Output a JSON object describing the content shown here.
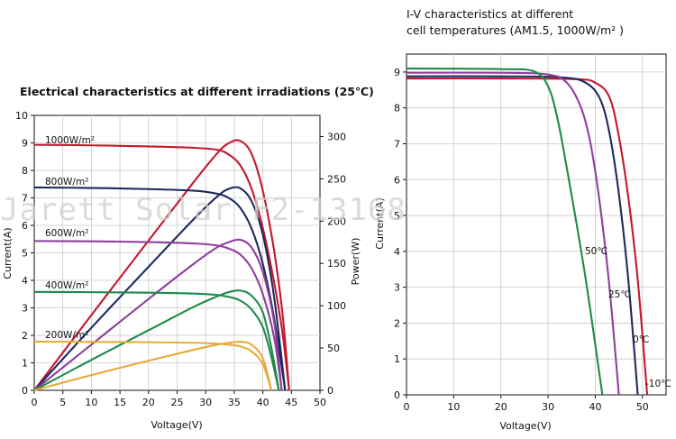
{
  "watermark": "Jarett Solar F2-13168",
  "chart_data": [
    {
      "type": "line",
      "title": "Electrical characteristics at different irradiations (25℃)",
      "xlabel": "Voltage(V)",
      "ylabel": "Current(A)",
      "y2label": "Power(W)",
      "xlim": [
        0,
        50
      ],
      "ylim": [
        0,
        10
      ],
      "y2lim": [
        0,
        325
      ],
      "xticks": [
        0,
        5,
        10,
        15,
        20,
        25,
        30,
        35,
        40,
        45,
        50
      ],
      "yticks": [
        0,
        1,
        2,
        3,
        4,
        5,
        6,
        7,
        8,
        9,
        10
      ],
      "y2ticks": [
        0,
        50,
        100,
        150,
        200,
        250,
        300
      ],
      "grid": true,
      "series": [
        {
          "name": "1000W/m²",
          "color": "#c4172e",
          "iv": [
            [
              0,
              8.93
            ],
            [
              10,
              8.91
            ],
            [
              20,
              8.87
            ],
            [
              28,
              8.82
            ],
            [
              32,
              8.75
            ],
            [
              34,
              8.58
            ],
            [
              36,
              8.2
            ],
            [
              38,
              7.35
            ],
            [
              40,
              5.9
            ],
            [
              42,
              3.9
            ],
            [
              43.5,
              2.0
            ],
            [
              44.6,
              0
            ]
          ],
          "pv": [
            [
              0,
              0
            ],
            [
              10,
              89
            ],
            [
              20,
              177
            ],
            [
              28,
              247
            ],
            [
              32,
              280
            ],
            [
              34,
              292
            ],
            [
              36,
              295
            ],
            [
              38,
              280
            ],
            [
              40,
              236
            ],
            [
              42,
              164
            ],
            [
              43.5,
              87
            ],
            [
              44.6,
              0
            ]
          ]
        },
        {
          "name": "800W/m²",
          "color": "#1e2a5e",
          "iv": [
            [
              0,
              7.38
            ],
            [
              10,
              7.36
            ],
            [
              20,
              7.32
            ],
            [
              28,
              7.26
            ],
            [
              32,
              7.15
            ],
            [
              34,
              7.0
            ],
            [
              36,
              6.65
            ],
            [
              38,
              5.9
            ],
            [
              40,
              4.6
            ],
            [
              42,
              2.6
            ],
            [
              43.9,
              0
            ]
          ],
          "pv": [
            [
              0,
              0
            ],
            [
              10,
              74
            ],
            [
              20,
              146
            ],
            [
              28,
              203
            ],
            [
              32,
              229
            ],
            [
              34,
              238
            ],
            [
              36,
              239
            ],
            [
              38,
              224
            ],
            [
              40,
              184
            ],
            [
              42,
              109
            ],
            [
              43.9,
              0
            ]
          ]
        },
        {
          "name": "600W/m²",
          "color": "#8e3e9c",
          "iv": [
            [
              0,
              5.43
            ],
            [
              10,
              5.42
            ],
            [
              20,
              5.39
            ],
            [
              28,
              5.34
            ],
            [
              32,
              5.27
            ],
            [
              34,
              5.16
            ],
            [
              36,
              4.95
            ],
            [
              38,
              4.45
            ],
            [
              40,
              3.5
            ],
            [
              42,
              1.9
            ],
            [
              43.3,
              0
            ]
          ],
          "pv": [
            [
              0,
              0
            ],
            [
              10,
              54
            ],
            [
              20,
              108
            ],
            [
              28,
              150
            ],
            [
              32,
              169
            ],
            [
              34,
              175
            ],
            [
              36,
              178
            ],
            [
              38,
              169
            ],
            [
              40,
              140
            ],
            [
              42,
              80
            ],
            [
              43.3,
              0
            ]
          ]
        },
        {
          "name": "400W/m²",
          "color": "#1e8a4a",
          "iv": [
            [
              0,
              3.58
            ],
            [
              10,
              3.57
            ],
            [
              20,
              3.55
            ],
            [
              28,
              3.52
            ],
            [
              32,
              3.47
            ],
            [
              34,
              3.4
            ],
            [
              36,
              3.27
            ],
            [
              38,
              2.95
            ],
            [
              40,
              2.3
            ],
            [
              41.5,
              1.2
            ],
            [
              42.8,
              0
            ]
          ],
          "pv": [
            [
              0,
              0
            ],
            [
              10,
              36
            ],
            [
              20,
              71
            ],
            [
              28,
              99
            ],
            [
              32,
              111
            ],
            [
              34,
              116
            ],
            [
              36,
              118
            ],
            [
              38,
              112
            ],
            [
              40,
              92
            ],
            [
              41.5,
              50
            ],
            [
              42.8,
              0
            ]
          ]
        },
        {
          "name": "200W/m²",
          "color": "#e8aa3a",
          "iv": [
            [
              0,
              1.77
            ],
            [
              10,
              1.76
            ],
            [
              20,
              1.75
            ],
            [
              28,
              1.73
            ],
            [
              32,
              1.7
            ],
            [
              34,
              1.66
            ],
            [
              36,
              1.6
            ],
            [
              38,
              1.42
            ],
            [
              40,
              0.95
            ],
            [
              41.5,
              0
            ]
          ],
          "pv": [
            [
              0,
              0
            ],
            [
              10,
              18
            ],
            [
              20,
              35
            ],
            [
              28,
              48
            ],
            [
              32,
              54
            ],
            [
              34,
              56
            ],
            [
              36,
              57.5
            ],
            [
              38,
              54
            ],
            [
              40,
              38
            ],
            [
              41.5,
              0
            ]
          ]
        }
      ],
      "annotations": [
        "1000W/m²",
        "800W/m²",
        "600W/m²",
        "400W/m²",
        "200W/m²"
      ]
    },
    {
      "type": "line",
      "title_lines": [
        "I-V characteristics at different",
        "cell temperatures (AM1.5, 1000W/m² )"
      ],
      "xlabel": "Voltage(V)",
      "ylabel": "Current(A)",
      "xlim": [
        0,
        55
      ],
      "ylim": [
        0,
        9.5
      ],
      "xticks": [
        0,
        10,
        20,
        30,
        40,
        50
      ],
      "yticks": [
        0,
        1,
        2,
        3,
        4,
        5,
        6,
        7,
        8,
        9
      ],
      "grid": true,
      "series": [
        {
          "name": "-10℃",
          "color": "#c4172e",
          "iv": [
            [
              0,
              8.82
            ],
            [
              20,
              8.82
            ],
            [
              36,
              8.8
            ],
            [
              40,
              8.7
            ],
            [
              43,
              8.3
            ],
            [
              45,
              7.2
            ],
            [
              47,
              5.5
            ],
            [
              49,
              3.2
            ],
            [
              51,
              0
            ]
          ]
        },
        {
          "name": "0℃",
          "color": "#1e2a5e",
          "iv": [
            [
              0,
              8.88
            ],
            [
              20,
              8.88
            ],
            [
              33,
              8.85
            ],
            [
              38,
              8.7
            ],
            [
              41,
              8.25
            ],
            [
              43,
              7.3
            ],
            [
              45,
              5.6
            ],
            [
              47,
              3.2
            ],
            [
              49,
              0
            ]
          ]
        },
        {
          "name": "25℃",
          "color": "#8e3e9c",
          "iv": [
            [
              0,
              8.98
            ],
            [
              20,
              8.98
            ],
            [
              30,
              8.93
            ],
            [
              34,
              8.7
            ],
            [
              37,
              8.0
            ],
            [
              39,
              7.0
            ],
            [
              41,
              5.3
            ],
            [
              43,
              3.0
            ],
            [
              45,
              0
            ]
          ]
        },
        {
          "name": "50℃",
          "color": "#1e8a4a",
          "iv": [
            [
              0,
              9.1
            ],
            [
              20,
              9.08
            ],
            [
              27,
              9.02
            ],
            [
              30,
              8.6
            ],
            [
              32,
              7.7
            ],
            [
              34,
              6.3
            ],
            [
              36,
              4.8
            ],
            [
              38,
              3.2
            ],
            [
              40,
              1.4
            ],
            [
              41.5,
              0
            ]
          ]
        }
      ],
      "annotations": [
        "50℃",
        "25℃",
        "0℃",
        "-10℃"
      ]
    }
  ]
}
